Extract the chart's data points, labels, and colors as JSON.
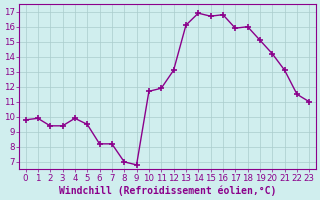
{
  "x": [
    0,
    1,
    2,
    3,
    4,
    5,
    6,
    7,
    8,
    9,
    10,
    11,
    12,
    13,
    14,
    15,
    16,
    17,
    18,
    19,
    20,
    21,
    22,
    23
  ],
  "y": [
    9.8,
    9.9,
    9.4,
    9.4,
    9.9,
    9.5,
    8.2,
    8.2,
    7.0,
    6.8,
    11.7,
    11.9,
    13.1,
    16.1,
    16.9,
    16.7,
    16.8,
    15.9,
    16.0,
    15.1,
    14.2,
    13.1,
    11.5,
    11.0
  ],
  "line_color": "#8B008B",
  "marker": "+",
  "marker_size": 4,
  "marker_lw": 1.2,
  "bg_color": "#d0eeee",
  "grid_color": "#aacccc",
  "xlabel": "Windchill (Refroidissement éolien,°C)",
  "xlabel_fontsize": 7.0,
  "tick_fontsize": 6.2,
  "ylim": [
    6.5,
    17.5
  ],
  "yticks": [
    7,
    8,
    9,
    10,
    11,
    12,
    13,
    14,
    15,
    16,
    17
  ],
  "xticks": [
    0,
    1,
    2,
    3,
    4,
    5,
    6,
    7,
    8,
    9,
    10,
    11,
    12,
    13,
    14,
    15,
    16,
    17,
    18,
    19,
    20,
    21,
    22,
    23
  ],
  "xlim": [
    -0.5,
    23.5
  ]
}
